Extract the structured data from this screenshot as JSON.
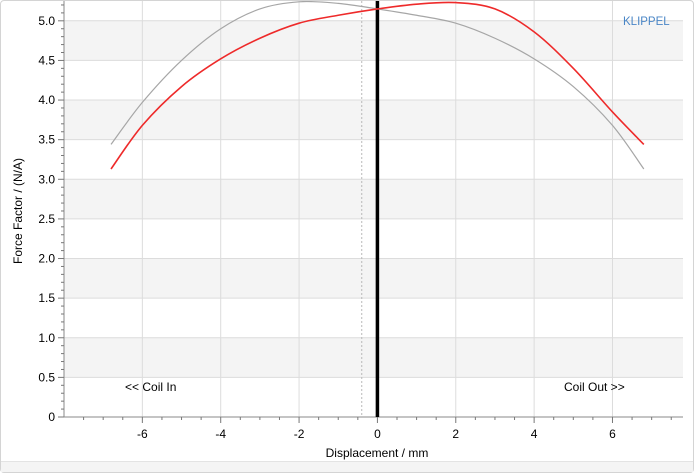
{
  "brand": "KLIPPEL",
  "annotations": {
    "left": "<< Coil In",
    "right": "Coil Out >>"
  },
  "colors": {
    "series_red": "#ee2a2a",
    "series_gray": "#a6a6a6",
    "band": "#f4f4f4",
    "grid": "#dcdcdc",
    "brand": "#4a86c6",
    "zero_line": "#000000",
    "rest_line": "#b8b8b8"
  },
  "chart_data": {
    "type": "line",
    "xlabel": "Displacement / mm",
    "ylabel": "Force Factor / (N/A)",
    "xlim": [
      -8,
      7.8
    ],
    "ylim": [
      0,
      5.25
    ],
    "xticks": [
      -6,
      -4,
      -2,
      0,
      2,
      4,
      6
    ],
    "yticks": [
      0,
      0.5,
      1.0,
      1.5,
      2.0,
      2.5,
      3.0,
      3.5,
      4.0,
      4.5,
      5.0
    ],
    "ytick_labels": [
      "0",
      "0.5",
      "1.0",
      "1.5",
      "2.0",
      "2.5",
      "3.0",
      "3.5",
      "4.0",
      "4.5",
      "5.0"
    ],
    "vertical_markers": [
      {
        "x": 0,
        "style": "solid"
      },
      {
        "x": -0.4,
        "style": "dotted"
      }
    ],
    "grid": true,
    "series": [
      {
        "color": "red",
        "x": [
          -6.8,
          -6,
          -5,
          -4,
          -3,
          -2,
          -1,
          0,
          1,
          2,
          3,
          4,
          5,
          6,
          6.8
        ],
        "y": [
          3.13,
          3.68,
          4.17,
          4.52,
          4.78,
          4.97,
          5.07,
          5.15,
          5.21,
          5.23,
          5.15,
          4.86,
          4.4,
          3.85,
          3.44
        ]
      },
      {
        "color": "gray",
        "x": [
          -6.8,
          -6,
          -5,
          -4,
          -3,
          -2,
          -1,
          0,
          1,
          2,
          3,
          4,
          5,
          6,
          6.8
        ],
        "y": [
          3.44,
          3.97,
          4.5,
          4.9,
          5.15,
          5.24,
          5.22,
          5.15,
          5.07,
          4.97,
          4.78,
          4.52,
          4.17,
          3.68,
          3.13
        ]
      }
    ]
  }
}
